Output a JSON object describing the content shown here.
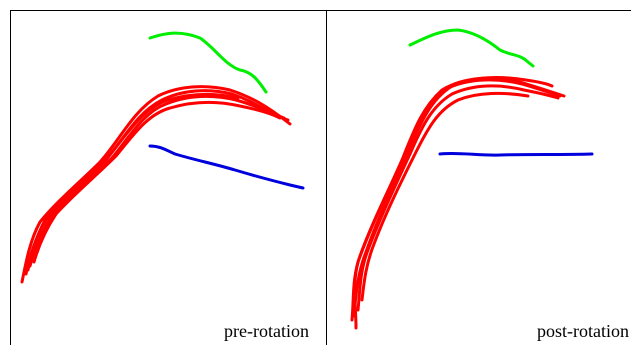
{
  "panels": {
    "left": {
      "caption": "pre-rotation"
    },
    "right": {
      "caption": "post-rotation"
    }
  },
  "colors": {
    "red_bundle": "#ff0000",
    "green_tract": "#00ee00",
    "blue_tract": "#0000dd",
    "border": "#000000",
    "background": "#ffffff"
  }
}
